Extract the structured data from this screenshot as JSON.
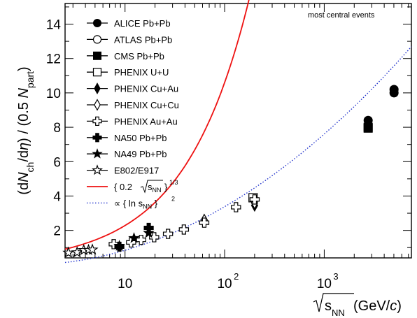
{
  "chart_data": {
    "type": "scatter",
    "annotation": "most central events",
    "xlabel": {
      "prefix": "",
      "radicand_main": "s",
      "radicand_sub": "NN",
      "suffix": " (GeV/",
      "suffix_italic": "c",
      "suffix_end": ")"
    },
    "ylabel": {
      "p1": "(d",
      "n1": "N",
      "s1": "ch",
      "p2": "/d",
      "eta": "η",
      "p3": ") / (0.5 ",
      "n2": "N",
      "s2": "part",
      "p4": ")"
    },
    "xscale": "log",
    "xlim": [
      2.5,
      7500
    ],
    "ylim": [
      0.4,
      15.2
    ],
    "yticks": [
      2,
      4,
      6,
      8,
      10,
      12,
      14
    ],
    "xtick_labels": [
      {
        "value": 10,
        "base": "10",
        "exp": ""
      },
      {
        "value": 100,
        "base": "10",
        "exp": "2"
      },
      {
        "value": 1000,
        "base": "10",
        "exp": "3"
      }
    ],
    "series": [
      {
        "name": "ALICE Pb+Pb",
        "marker": "circle",
        "filled": true,
        "points": [
          [
            2760,
            8.4
          ],
          [
            5020,
            10.2
          ],
          [
            5020,
            10.0
          ]
        ]
      },
      {
        "name": "ATLAS Pb+Pb",
        "marker": "circle",
        "filled": false,
        "points": []
      },
      {
        "name": "CMS Pb+Pb",
        "marker": "square",
        "filled": true,
        "points": [
          [
            2760,
            8.0
          ],
          [
            2760,
            7.95
          ]
        ]
      },
      {
        "name": "PHENIX U+U",
        "marker": "square",
        "filled": false,
        "points": [
          [
            193,
            3.9
          ]
        ]
      },
      {
        "name": "PHENIX Cu+Au",
        "marker": "diamond",
        "filled": true,
        "points": [
          [
            200,
            3.45
          ]
        ]
      },
      {
        "name": "PHENIX Cu+Cu",
        "marker": "diamond",
        "filled": false,
        "points": [
          [
            62.4,
            2.6
          ],
          [
            200,
            3.6
          ]
        ]
      },
      {
        "name": "PHENIX Au+Au",
        "marker": "cross",
        "filled": false,
        "points": [
          [
            7.7,
            1.2
          ],
          [
            11.5,
            1.3
          ],
          [
            14.5,
            1.45
          ],
          [
            19.6,
            1.6
          ],
          [
            27,
            1.8
          ],
          [
            39,
            2.05
          ],
          [
            62.4,
            2.45
          ],
          [
            130,
            3.35
          ],
          [
            200,
            3.8
          ]
        ]
      },
      {
        "name": "NA50 Pb+Pb",
        "marker": "cross",
        "filled": true,
        "points": [
          [
            8.77,
            1.05
          ],
          [
            17.3,
            2.15
          ]
        ]
      },
      {
        "name": "NA49 Pb+Pb",
        "marker": "star",
        "filled": true,
        "points": [
          [
            8.77,
            1.1
          ],
          [
            12.3,
            1.55
          ],
          [
            17.3,
            1.85
          ]
        ]
      },
      {
        "name": "E802/E917",
        "marker": "star",
        "filled": false,
        "points": [
          [
            2.7,
            0.7
          ],
          [
            3.3,
            0.72
          ],
          [
            3.85,
            0.85
          ],
          [
            4.3,
            0.86
          ],
          [
            4.7,
            0.88
          ]
        ]
      }
    ],
    "curves": [
      {
        "legend_coef": "0.2",
        "legend_radicand_main": "s",
        "legend_radicand_sub": "NN",
        "legend_exp": "1/3",
        "color": "#ee1111",
        "style": "solid",
        "formula": "a*s^(1/3)",
        "coef": 0.2,
        "fit_range": [
          2.5,
          7500
        ]
      },
      {
        "legend_coef": "∝",
        "legend_func": "ln s",
        "legend_sub": "NN",
        "legend_exp": "2",
        "color": "#2233cc",
        "style": "dotted",
        "formula": "b*(ln s)^2",
        "coef": 0.0797,
        "fit_range": [
          2.5,
          7500
        ]
      }
    ]
  }
}
